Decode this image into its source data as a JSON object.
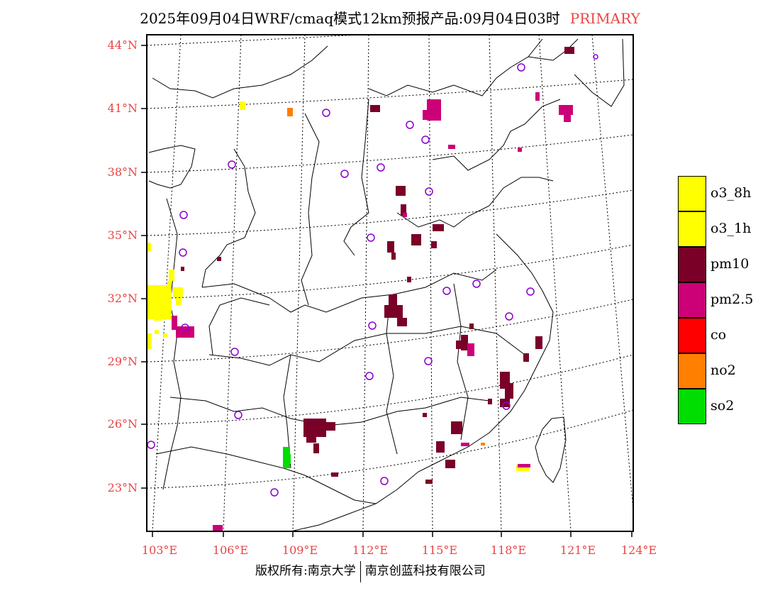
{
  "header": {
    "title": "2025年09月04日WRF/cmaq模式12km预报产品:09月04日03时",
    "tag": "PRIMARY"
  },
  "axes": {
    "lat_labels": [
      "44°N",
      "41°N",
      "38°N",
      "35°N",
      "32°N",
      "29°N",
      "26°N",
      "23°N"
    ],
    "lon_labels": [
      "103°E",
      "106°E",
      "109°E",
      "112°E",
      "115°E",
      "118°E",
      "121°E",
      "124°E"
    ]
  },
  "legend": {
    "items": [
      {
        "label": "o3_8h",
        "color": "#ffff00"
      },
      {
        "label": "o3_1h",
        "color": "#ffff00"
      },
      {
        "label": "pm10",
        "color": "#7a0028"
      },
      {
        "label": "pm2.5",
        "color": "#cc0077"
      },
      {
        "label": "co",
        "color": "#ff0000"
      },
      {
        "label": "no2",
        "color": "#ff7f00"
      },
      {
        "label": "so2",
        "color": "#00dd00"
      }
    ]
  },
  "footer": {
    "copyright_left": "版权所有:南京大学",
    "copyright_right": "南京创蓝科技有限公司"
  },
  "colors": {
    "pm10": "#7a0028",
    "pm25": "#cc0077",
    "o3": "#ffff00",
    "no2": "#ff7f00",
    "so2": "#00dd00",
    "station": "#8800cc",
    "axis_label": "#e84444"
  }
}
